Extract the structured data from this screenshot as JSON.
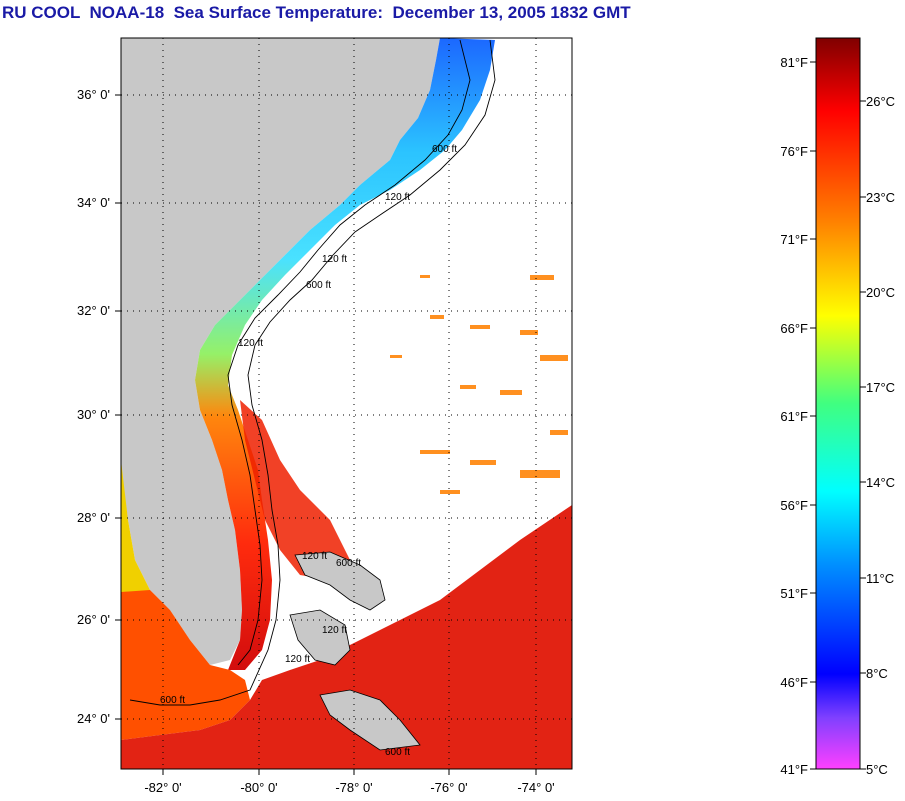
{
  "title": "RU COOL  NOAA-18  Sea Surface Temperature:  December 13, 2005 1832 GMT",
  "map": {
    "lat_ticks": [
      "36° 0'",
      "34° 0'",
      "32° 0'",
      "30° 0'",
      "28° 0'",
      "26° 0'",
      "24° 0'"
    ],
    "lon_ticks": [
      "-82° 0'",
      "-80° 0'",
      "-78° 0'",
      "-76° 0'",
      "-74° 0'"
    ],
    "contour_labels": [
      "120 ft",
      "600 ft",
      "120 ft",
      "600 ft",
      "120 ft",
      "120 ft",
      "120 ft",
      "600 ft",
      "120 ft",
      "600 ft",
      "600 ft"
    ],
    "colors": {
      "land": "#c8c8c8",
      "cloud": "#ffffff",
      "grid": "#000000"
    }
  },
  "colorbar": {
    "fahrenheit": [
      "81°F",
      "76°F",
      "71°F",
      "66°F",
      "61°F",
      "56°F",
      "51°F",
      "46°F",
      "41°F"
    ],
    "celsius": [
      "26°C",
      "23°C",
      "20°C",
      "17°C",
      "14°C",
      "11°C",
      "8°C",
      "5°C"
    ],
    "gradient": [
      "#800000",
      "#ff0000",
      "#ff8000",
      "#ffff00",
      "#00ff80",
      "#00ffff",
      "#0080ff",
      "#0000ff",
      "#8040ff",
      "#ff40ff"
    ]
  }
}
